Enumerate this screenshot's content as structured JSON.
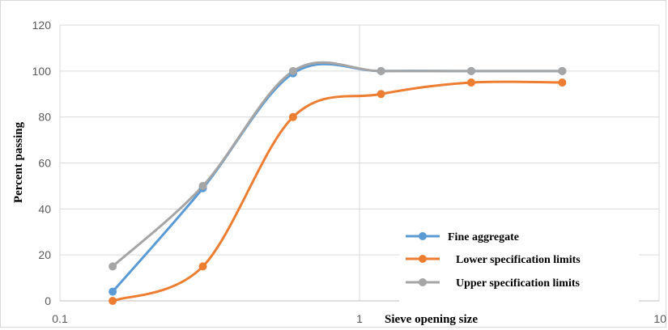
{
  "chart_data": {
    "type": "line",
    "title": "",
    "xlabel": "Sieve opening size",
    "ylabel": "Percent passing",
    "xscale": "log",
    "xlim": [
      0.1,
      10
    ],
    "ylim": [
      0,
      120
    ],
    "x_ticks": [
      "0.1",
      "1",
      "10"
    ],
    "y_ticks": [
      "0",
      "20",
      "40",
      "60",
      "80",
      "100",
      "120"
    ],
    "grid": true,
    "legend_position": "bottom-right",
    "smoothed": true,
    "x": [
      0.15,
      0.3,
      0.6,
      1.18,
      2.36,
      4.75
    ],
    "series": [
      {
        "name": "Fine aggregate",
        "color": "#5b9bd5",
        "values": [
          4,
          49,
          99,
          100,
          100,
          100
        ]
      },
      {
        "name": "Lower specification limits",
        "color": "#ed7d31",
        "values": [
          0,
          15,
          80,
          90,
          95,
          95
        ]
      },
      {
        "name": "Upper specification limits",
        "color": "#a5a5a5",
        "values": [
          15,
          50,
          100,
          100,
          100,
          100
        ]
      }
    ]
  }
}
